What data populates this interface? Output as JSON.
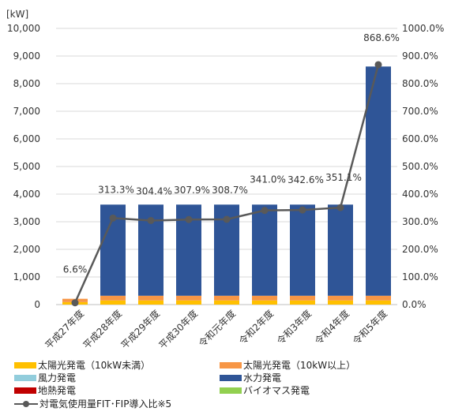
{
  "chart_data": {
    "type": "bar",
    "stacked": true,
    "unit_label": "[kW]",
    "categories": [
      "平成27年度",
      "平成28年度",
      "平成29年度",
      "平成30年度",
      "令和元年度",
      "令和2年度",
      "令和3年度",
      "令和4年度",
      "令和5年度"
    ],
    "series": [
      {
        "name": "太陽光発電（10kW未満）",
        "color": "#FFC000",
        "axis": "left",
        "values": [
          90,
          150,
          150,
          150,
          150,
          150,
          150,
          150,
          150
        ]
      },
      {
        "name": "太陽光発電（10kW以上）",
        "color": "#F79646",
        "axis": "left",
        "values": [
          120,
          170,
          170,
          170,
          170,
          170,
          170,
          170,
          170
        ]
      },
      {
        "name": "風力発電",
        "color": "#92CDDC",
        "axis": "left",
        "values": [
          0,
          0,
          0,
          0,
          0,
          0,
          0,
          0,
          0
        ]
      },
      {
        "name": "水力発電",
        "color": "#2F5597",
        "axis": "left",
        "values": [
          0,
          3300,
          3300,
          3300,
          3300,
          3300,
          3300,
          3300,
          8300
        ]
      },
      {
        "name": "地熱発電",
        "color": "#C00000",
        "axis": "left",
        "values": [
          0,
          0,
          0,
          0,
          0,
          0,
          0,
          0,
          0
        ]
      },
      {
        "name": "バイオマス発電",
        "color": "#92D050",
        "axis": "left",
        "values": [
          0,
          0,
          0,
          0,
          0,
          0,
          0,
          0,
          0
        ]
      },
      {
        "name": "対電気使用量FIT･FIP導入比※5",
        "type": "line",
        "color": "#595959",
        "axis": "right",
        "values": [
          6.6,
          313.3,
          304.4,
          307.9,
          308.7,
          341.0,
          342.6,
          351.1,
          868.6
        ]
      }
    ],
    "data_labels": [
      "6.6%",
      "313.3%",
      "304.4%",
      "307.9%",
      "308.7%",
      "341.0%",
      "342.6%",
      "351.1%",
      "868.6%"
    ],
    "y_left": {
      "min": 0,
      "max": 10000,
      "step": 1000,
      "ticks": [
        "0",
        "1,000",
        "2,000",
        "3,000",
        "4,000",
        "5,000",
        "6,000",
        "7,000",
        "8,000",
        "9,000",
        "10,000"
      ]
    },
    "y_right": {
      "min": 0,
      "max": 1000,
      "step": 100,
      "ticks": [
        "0.0%",
        "100.0%",
        "200.0%",
        "300.0%",
        "400.0%",
        "500.0%",
        "600.0%",
        "700.0%",
        "800.0%",
        "900.0%",
        "1000.0%"
      ]
    },
    "grid": true,
    "legend_position": "bottom"
  }
}
